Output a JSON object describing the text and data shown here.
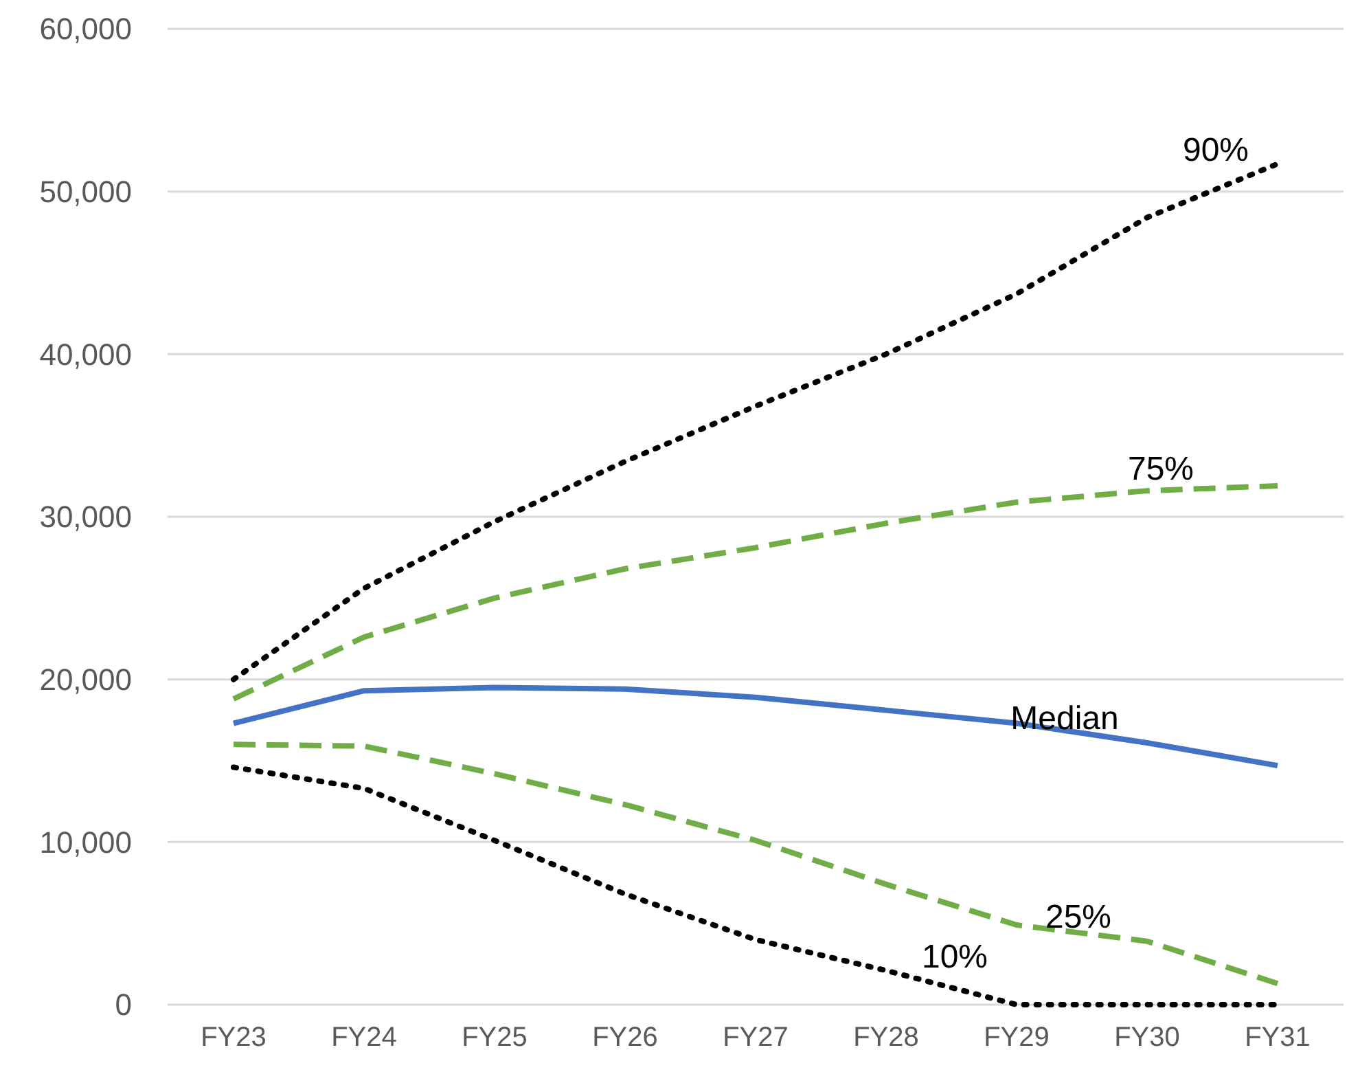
{
  "chart_data": {
    "type": "line",
    "categories": [
      "FY23",
      "FY24",
      "FY25",
      "FY26",
      "FY27",
      "FY28",
      "FY29",
      "FY30",
      "FY31"
    ],
    "series": [
      {
        "name": "90%",
        "color": "#000000",
        "line_style": "dotted",
        "values": [
          20000,
          25600,
          29700,
          33400,
          36800,
          40000,
          43700,
          48400,
          51700
        ]
      },
      {
        "name": "75%",
        "color": "#70ad47",
        "line_style": "dashed",
        "values": [
          18800,
          22600,
          25000,
          26800,
          28100,
          29600,
          30900,
          31600,
          31900
        ]
      },
      {
        "name": "Median",
        "color": "#4472c4",
        "line_style": "solid",
        "values": [
          17300,
          19300,
          19500,
          19400,
          18900,
          18100,
          17300,
          16100,
          14700
        ]
      },
      {
        "name": "25%",
        "color": "#70ad47",
        "line_style": "dashed",
        "values": [
          16000,
          15900,
          14200,
          12300,
          10100,
          7400,
          4900,
          3900,
          1300
        ]
      },
      {
        "name": "10%",
        "color": "#000000",
        "line_style": "dotted",
        "values": [
          14600,
          13300,
          10100,
          6800,
          4000,
          2100,
          0,
          0,
          0
        ]
      }
    ],
    "ylim": [
      0,
      60000
    ],
    "yticks": [
      {
        "value": 0,
        "label": "0"
      },
      {
        "value": 10000,
        "label": "10,000"
      },
      {
        "value": 20000,
        "label": "20,000"
      },
      {
        "value": 30000,
        "label": "30,000"
      },
      {
        "value": 40000,
        "label": "40,000"
      },
      {
        "value": 50000,
        "label": "50,000"
      },
      {
        "value": 60000,
        "label": "60,000"
      }
    ],
    "grid": "y",
    "legend": false,
    "marker": "none"
  }
}
